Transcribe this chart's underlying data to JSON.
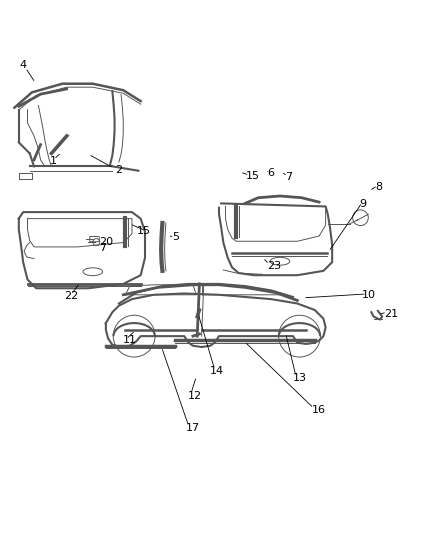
{
  "background_color": "#ffffff",
  "line_color": "#555555",
  "label_color": "#000000",
  "label_fontsize": 8,
  "fig_width": 4.38,
  "fig_height": 5.33
}
